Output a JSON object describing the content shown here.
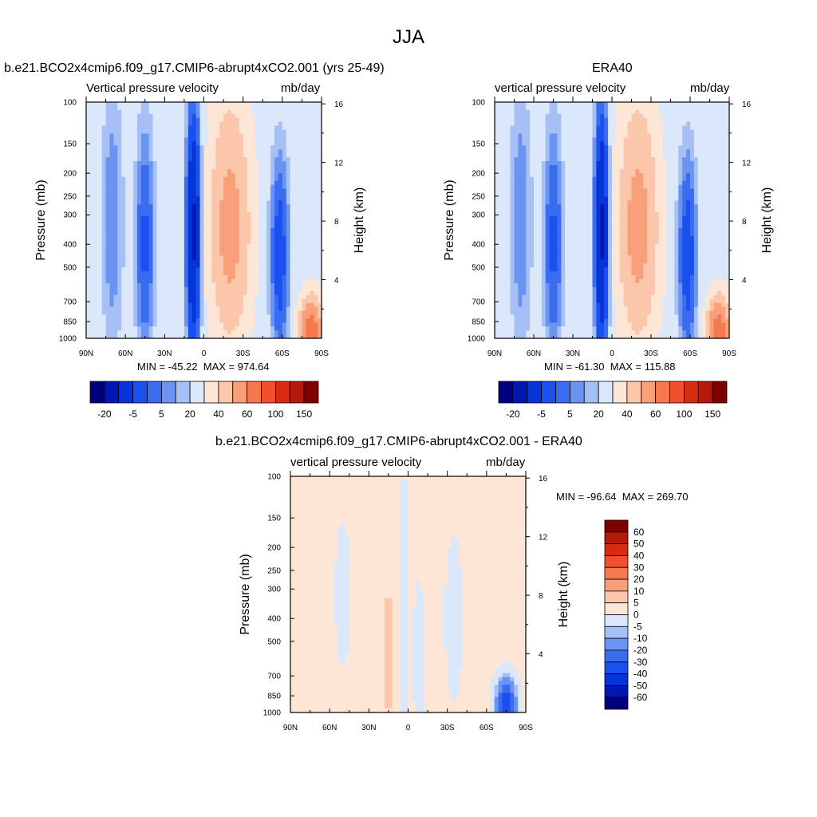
{
  "figure": {
    "title": "JJA"
  },
  "chart_data": [
    {
      "type": "heatmap",
      "title": "b.e21.BCO2x4cmip6.f09_g17.CMIP6-abrupt4xCO2.001 (yrs 25-49)",
      "left_subtitle": "Vertical pressure velocity",
      "right_subtitle": "mb/day",
      "xlabel": "",
      "ylabel": "Pressure (mb)",
      "y2label": "Height (km)",
      "x_ticks": [
        "90N",
        "60N",
        "30N",
        "0",
        "30S",
        "60S",
        "90S"
      ],
      "y_ticks": [
        100,
        150,
        200,
        250,
        300,
        400,
        500,
        700,
        850,
        1000
      ],
      "y2_ticks": [
        4,
        8,
        12,
        16
      ],
      "ylim": [
        1000,
        100
      ],
      "y_scale": "log",
      "min_text": "MIN = -45.22",
      "max_text": "MAX = 974.64",
      "colorbar": {
        "orientation": "horizontal",
        "labels": [
          "-20",
          "-5",
          "5",
          "20",
          "40",
          "60",
          "100",
          "150"
        ]
      }
    },
    {
      "type": "heatmap",
      "title": "ERA40",
      "left_subtitle": "vertical pressure velocity",
      "right_subtitle": "mb/day",
      "xlabel": "",
      "ylabel": "Pressure (mb)",
      "y2label": "Height (km)",
      "x_ticks": [
        "90N",
        "60N",
        "30N",
        "0",
        "30S",
        "60S",
        "90S"
      ],
      "y_ticks": [
        100,
        150,
        200,
        250,
        300,
        400,
        500,
        700,
        850,
        1000
      ],
      "y2_ticks": [
        4,
        8,
        12,
        16
      ],
      "ylim": [
        1000,
        100
      ],
      "y_scale": "log",
      "min_text": "MIN = -61.30",
      "max_text": "MAX = 115.88",
      "colorbar": {
        "orientation": "horizontal",
        "labels": [
          "-20",
          "-5",
          "5",
          "20",
          "40",
          "60",
          "100",
          "150"
        ]
      }
    },
    {
      "type": "heatmap",
      "title": "b.e21.BCO2x4cmip6.f09_g17.CMIP6-abrupt4xCO2.001 - ERA40",
      "left_subtitle": "vertical pressure velocity",
      "right_subtitle": "mb/day",
      "xlabel": "",
      "ylabel": "Pressure (mb)",
      "y2label": "Height (km)",
      "x_ticks": [
        "90N",
        "60N",
        "30N",
        "0",
        "30S",
        "60S",
        "90S"
      ],
      "y_ticks": [
        100,
        150,
        200,
        250,
        300,
        400,
        500,
        700,
        850,
        1000
      ],
      "y2_ticks": [
        4,
        8,
        12,
        16
      ],
      "ylim": [
        1000,
        100
      ],
      "y_scale": "log",
      "stats_text": "MIN = -96.64  MAX = 269.70",
      "colorbar": {
        "orientation": "vertical",
        "labels": [
          "60",
          "50",
          "40",
          "30",
          "20",
          "10",
          "5",
          "0",
          "-5",
          "-10",
          "-20",
          "-30",
          "-40",
          "-50",
          "-60"
        ]
      }
    }
  ],
  "colormap": [
    "#00007f",
    "#0018b2",
    "#0634d8",
    "#1a50ef",
    "#3a6cf0",
    "#6a93f2",
    "#a6c0f6",
    "#dbe8fb",
    "#fde6d6",
    "#fcc6aa",
    "#f9a07a",
    "#f5784e",
    "#f0502b",
    "#d62d12",
    "#b4190a",
    "#7f0000"
  ]
}
